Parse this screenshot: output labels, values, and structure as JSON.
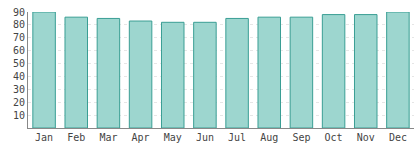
{
  "chart_data": {
    "type": "bar",
    "categories": [
      "Jan",
      "Feb",
      "Mar",
      "Apr",
      "May",
      "Jun",
      "Jul",
      "Aug",
      "Sep",
      "Oct",
      "Nov",
      "Dec"
    ],
    "values": [
      90,
      86,
      85,
      83,
      82,
      82,
      85,
      86,
      86,
      88,
      88,
      90
    ],
    "color": "#9dd6cf",
    "ylim": [
      0,
      90
    ],
    "yticks": [
      10,
      20,
      30,
      40,
      50,
      60,
      70,
      80,
      90
    ],
    "grid": true
  }
}
